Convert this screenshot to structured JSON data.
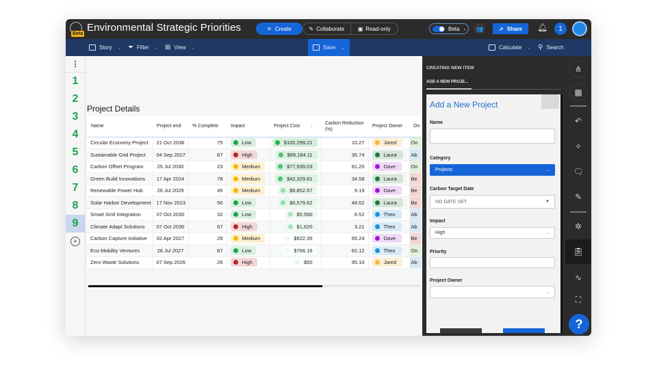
{
  "app": {
    "title": "Environmental Strategic Priorities",
    "beta_badge": "Beta"
  },
  "titlebar": {
    "create_label": "Create",
    "collaborate_label": "Collaborate",
    "readonly_label": "Read-only",
    "beta_toggle_label": "Beta",
    "share_label": "Share",
    "notification_count": "1"
  },
  "toolbar": {
    "story_label": "Story",
    "filter_label": "Filter",
    "view_label": "View",
    "save_label": "Save",
    "calculate_label": "Calculate",
    "search_label": "Search"
  },
  "row_numbers": [
    "1",
    "2",
    "3",
    "4",
    "5",
    "6",
    "7",
    "8",
    "9"
  ],
  "selected_row": "9",
  "section": {
    "title": "Project Details"
  },
  "table": {
    "columns": [
      "Name",
      "Project end",
      "% Complete",
      "Impact",
      "Project Cost",
      "Carbon Reduction (%)",
      "Project Owner",
      "On"
    ],
    "rows": [
      {
        "name": "Circular Economy Project",
        "end": "21 Oct 2036",
        "complete": "75",
        "impact": "Low",
        "cost": "$100,299.21",
        "reduction": "10.27",
        "owner": "Jared",
        "status": "On"
      },
      {
        "name": "Sustainable Grid Project",
        "end": "04 Sep 2027",
        "complete": "87",
        "impact": "High",
        "cost": "$89,184.11",
        "reduction": "35.74",
        "owner": "Laura",
        "status": "Ab"
      },
      {
        "name": "Carbon Offset Program",
        "end": "25 Jul 2030",
        "complete": "23",
        "impact": "Medium",
        "cost": "$77,939.03",
        "reduction": "81.20",
        "owner": "Dave",
        "status": "On"
      },
      {
        "name": "Green Build Innovations",
        "end": "17 Apr 2024",
        "complete": "78",
        "impact": "Medium",
        "cost": "$42,329.61",
        "reduction": "34.58",
        "owner": "Laura",
        "status": "Be"
      },
      {
        "name": "Renewable Power Hub",
        "end": "26 Jul 2029",
        "complete": "45",
        "impact": "Medium",
        "cost": "$9,852.57",
        "reduction": "9.19",
        "owner": "Dave",
        "status": "Be"
      },
      {
        "name": "Solar Harbor Development",
        "end": "17 Nov 2023",
        "complete": "56",
        "impact": "Low",
        "cost": "$6,579.62",
        "reduction": "48.62",
        "owner": "Laura",
        "status": "Be"
      },
      {
        "name": "Smart Grid Integration",
        "end": "07 Oct 2030",
        "complete": "32",
        "impact": "Low",
        "cost": "$5,590",
        "reduction": "6.52",
        "owner": "Theo",
        "status": "Ab"
      },
      {
        "name": "Climate Adapt Solutions",
        "end": "07 Oct 2030",
        "complete": "67",
        "impact": "High",
        "cost": "$1,620",
        "reduction": "3.21",
        "owner": "Theo",
        "status": "Ab"
      },
      {
        "name": "Carbon Capture Initiative",
        "end": "02 Apr 2027",
        "complete": "26",
        "impact": "Medium",
        "cost": "$922.35",
        "reduction": "65.24",
        "owner": "Dave",
        "status": "Be"
      },
      {
        "name": "Eco Mobility Ventures",
        "end": "28 Jul 2027",
        "complete": "87",
        "impact": "Low",
        "cost": "$766.16",
        "reduction": "62.12",
        "owner": "Theo",
        "status": "On"
      },
      {
        "name": "Zero Waste Solutions",
        "end": "07 Sep 2026",
        "complete": "26",
        "impact": "High",
        "cost": "$50",
        "reduction": "95.10",
        "owner": "Jared",
        "status": "Ab"
      }
    ]
  },
  "colors": {
    "impact": {
      "Low": {
        "dot": "#12a84a",
        "bg": "#dcefe1"
      },
      "High": {
        "dot": "#b3272d",
        "bg": "#f3d7d7"
      },
      "Medium": {
        "dot": "#f7b500",
        "bg": "#fdf0cf"
      }
    },
    "owner": {
      "Jared": {
        "dot": "#f6b63e",
        "bg": "#fdeed6"
      },
      "Laura": {
        "dot": "#1f7a3a",
        "bg": "#d6e6da"
      },
      "Dave": {
        "dot": "#9c1ad1",
        "bg": "#efd9f8"
      },
      "Theo": {
        "dot": "#1795d6",
        "bg": "#d6ebf7"
      }
    },
    "status": {
      "On": "#e3f1dc",
      "Ab": "#d9e8f5",
      "Be": "#f3d7d7"
    },
    "accent": "#1565d8",
    "toolbar": "#1f3864",
    "titlebar": "#2b2b2b"
  },
  "panel": {
    "header": "CREATING NEW ITEM",
    "tab": "ADD A NEW PROJE...",
    "form_title": "Add a New Project",
    "more_label": "···",
    "fields": {
      "name_label": "Name",
      "name_value": "",
      "category_label": "Category",
      "category_value": "Projects",
      "carbon_date_label": "Carbon Target Date",
      "carbon_date_value": "NO DATE SET",
      "impact_label": "Impact",
      "impact_value": "High",
      "priority_label": "Priority",
      "priority_value": "",
      "owner_label": "Project Owner",
      "owner_value": ""
    }
  },
  "rail": {
    "help_label": "?"
  }
}
